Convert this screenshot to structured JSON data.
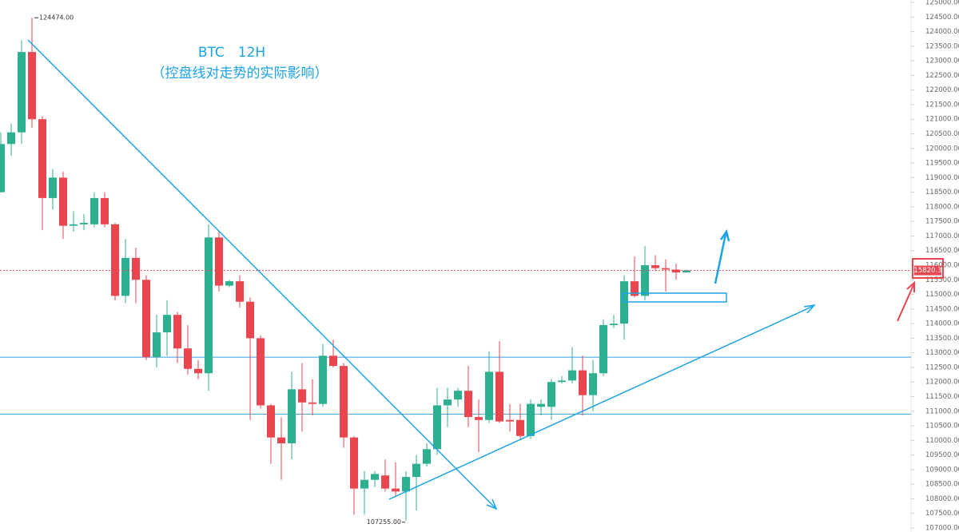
{
  "chart_data": {
    "type": "candlestick",
    "title": "BTC　12H",
    "subtitle": "（控盘线对走势的实际影响）",
    "title_color": "#1aa3e8",
    "up_color": "#2cb08f",
    "down_color": "#e9464f",
    "ylim": [
      107000,
      125000
    ],
    "yticks": [
      {
        "value": 107000,
        "label": "107000.00"
      },
      {
        "value": 107500,
        "label": "107500.00"
      },
      {
        "value": 108000,
        "label": "108000.00"
      },
      {
        "value": 108500,
        "label": "108500.00"
      },
      {
        "value": 109000,
        "label": "109000.00"
      },
      {
        "value": 109500,
        "label": "109500.00"
      },
      {
        "value": 110000,
        "label": "110000.00"
      },
      {
        "value": 110500,
        "label": "110500.00"
      },
      {
        "value": 111000,
        "label": "111000.00"
      },
      {
        "value": 111500,
        "label": "111500.00"
      },
      {
        "value": 112000,
        "label": "112000.00"
      },
      {
        "value": 112500,
        "label": "112500.00"
      },
      {
        "value": 113000,
        "label": "113000.00"
      },
      {
        "value": 113500,
        "label": "113500.00"
      },
      {
        "value": 114000,
        "label": "114000.00"
      },
      {
        "value": 114500,
        "label": "114500.00"
      },
      {
        "value": 115000,
        "label": "115000.00"
      },
      {
        "value": 115500,
        "label": "115500.00"
      },
      {
        "value": 116000,
        "label": "116000.00"
      },
      {
        "value": 116500,
        "label": "116500.00"
      },
      {
        "value": 117000,
        "label": "117000.00"
      },
      {
        "value": 117500,
        "label": "117500.00"
      },
      {
        "value": 118000,
        "label": "118000.00"
      },
      {
        "value": 118500,
        "label": "118500.00"
      },
      {
        "value": 119000,
        "label": "119000.00"
      },
      {
        "value": 119500,
        "label": "119500.00"
      },
      {
        "value": 120000,
        "label": "120000.00"
      },
      {
        "value": 120500,
        "label": "120500.00"
      },
      {
        "value": 121000,
        "label": "121000.00"
      },
      {
        "value": 121500,
        "label": "121500.00"
      },
      {
        "value": 122000,
        "label": "122000.00"
      },
      {
        "value": 122500,
        "label": "122500.00"
      },
      {
        "value": 123000,
        "label": "123000.00"
      },
      {
        "value": 123500,
        "label": "123500.00"
      },
      {
        "value": 124000,
        "label": "124000.00"
      },
      {
        "value": 124500,
        "label": "124500.00"
      },
      {
        "value": 125000,
        "label": "125000.00"
      }
    ],
    "open": [
      118500,
      120150,
      120550,
      123300,
      121000,
      118300,
      119000,
      117350,
      117400,
      117400,
      118300,
      117400,
      114950,
      116250,
      115500,
      112850,
      113700,
      114300,
      113150,
      112450,
      112300,
      116950,
      115300,
      115450,
      114750,
      113500,
      111200,
      110100,
      109900,
      111750,
      111300,
      111250,
      112900,
      112550,
      110100,
      108350,
      108650,
      108800,
      108350,
      108250,
      108750,
      109200,
      109700,
      111200,
      111400,
      111700,
      110800,
      110700,
      112350,
      110700,
      110700,
      110150,
      111150,
      111150,
      112000,
      112050,
      112400,
      111550,
      112300,
      113950,
      114000,
      115450,
      114950,
      116000,
      115900,
      115850,
      115750
    ],
    "high": [
      120550,
      120850,
      123700,
      124474,
      121100,
      119300,
      119200,
      117850,
      117750,
      118500,
      118500,
      117450,
      116900,
      116600,
      115650,
      114300,
      114800,
      114400,
      113950,
      112750,
      117400,
      117150,
      115500,
      115650,
      114900,
      113600,
      111250,
      110800,
      112350,
      112650,
      112100,
      113300,
      113450,
      112650,
      110150,
      108950,
      108950,
      109350,
      109250,
      108950,
      109500,
      109900,
      111800,
      111800,
      111800,
      112550,
      111400,
      113050,
      113400,
      111250,
      111250,
      111400,
      111400,
      112100,
      112200,
      113200,
      112900,
      112750,
      114150,
      114300,
      115650,
      116300,
      116650,
      116350,
      116200,
      116050,
      115850
    ],
    "low": [
      118500,
      119750,
      120150,
      120700,
      117200,
      117900,
      116900,
      117150,
      117200,
      117300,
      117300,
      114800,
      114700,
      114700,
      112750,
      112500,
      112900,
      112650,
      112250,
      112100,
      111700,
      115100,
      115250,
      114550,
      110700,
      111100,
      109200,
      108650,
      109350,
      110300,
      110850,
      111150,
      112500,
      109750,
      107450,
      107450,
      108400,
      108250,
      108100,
      107255,
      107600,
      109100,
      109500,
      110450,
      111150,
      110450,
      109600,
      110600,
      110600,
      110300,
      110050,
      110050,
      110850,
      110700,
      111950,
      111950,
      110850,
      111000,
      112200,
      113850,
      113450,
      114900,
      114800,
      115800,
      115100,
      115500,
      115750
    ],
    "close": [
      120150,
      120550,
      123300,
      121000,
      118300,
      119000,
      117350,
      117400,
      117450,
      118300,
      117400,
      114950,
      116250,
      115500,
      112850,
      113700,
      114300,
      113150,
      112450,
      112300,
      116950,
      115300,
      115450,
      114750,
      113500,
      111200,
      110100,
      109900,
      111750,
      111300,
      111250,
      112900,
      112550,
      110100,
      108350,
      108650,
      108850,
      108350,
      108250,
      108750,
      109200,
      109700,
      111200,
      111400,
      111700,
      110800,
      110700,
      112350,
      110650,
      110650,
      110150,
      111250,
      111250,
      112000,
      112050,
      112400,
      111550,
      112300,
      113950,
      114000,
      115450,
      114950,
      116000,
      115900,
      115850,
      115750,
      115820.36
    ],
    "high_label": {
      "value": 124474,
      "label": "124474.00"
    },
    "low_label": {
      "value": 107255,
      "label": "107255.00"
    },
    "last_price": 115820.36,
    "levels": [
      112850,
      110900
    ]
  }
}
